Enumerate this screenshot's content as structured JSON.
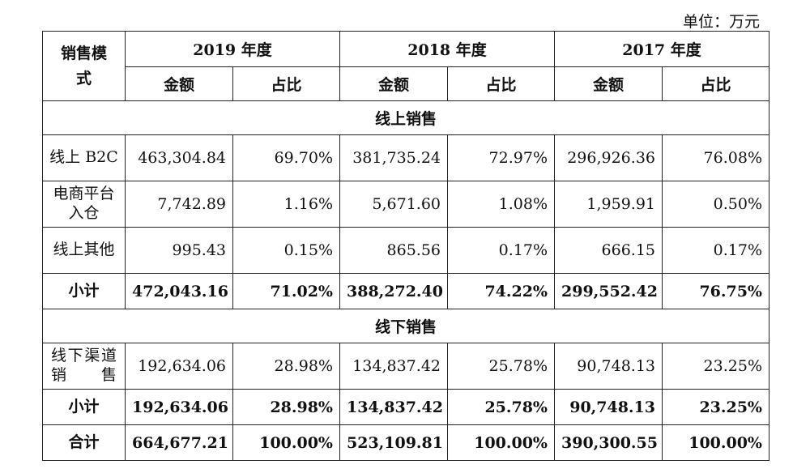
{
  "unit_label": "单位：万元",
  "header": {
    "mode_label": "销售模式",
    "years": [
      "2019 年度",
      "2018 年度",
      "2017 年度"
    ],
    "amount_label": "金额",
    "ratio_label": "占比"
  },
  "sections": [
    {
      "title": "线上销售",
      "rows": [
        {
          "label": "线上 B2C",
          "values": [
            "463,304.84",
            "69.70%",
            "381,735.24",
            "72.97%",
            "296,926.36",
            "76.08%"
          ]
        },
        {
          "label": "电商平台入仓",
          "values": [
            "7,742.89",
            "1.16%",
            "5,671.60",
            "1.08%",
            "1,959.91",
            "0.50%"
          ]
        },
        {
          "label": "线上其他",
          "values": [
            "995.43",
            "0.15%",
            "865.56",
            "0.17%",
            "666.15",
            "0.17%"
          ]
        }
      ],
      "subtotal": {
        "label": "小计",
        "values": [
          "472,043.16",
          "71.02%",
          "388,272.40",
          "74.22%",
          "299,552.42",
          "76.75%"
        ]
      }
    },
    {
      "title": "线下销售",
      "rows": [
        {
          "label": "线下渠道销售",
          "values": [
            "192,634.06",
            "28.98%",
            "134,837.42",
            "25.78%",
            "90,748.13",
            "23.25%"
          ]
        }
      ],
      "subtotal": {
        "label": "小计",
        "values": [
          "192,634.06",
          "28.98%",
          "134,837.42",
          "25.78%",
          "90,748.13",
          "23.25%"
        ]
      }
    }
  ],
  "total": {
    "label": "合计",
    "values": [
      "664,677.21",
      "100.00%",
      "523,109.81",
      "100.00%",
      "390,300.55",
      "100.00%"
    ]
  }
}
